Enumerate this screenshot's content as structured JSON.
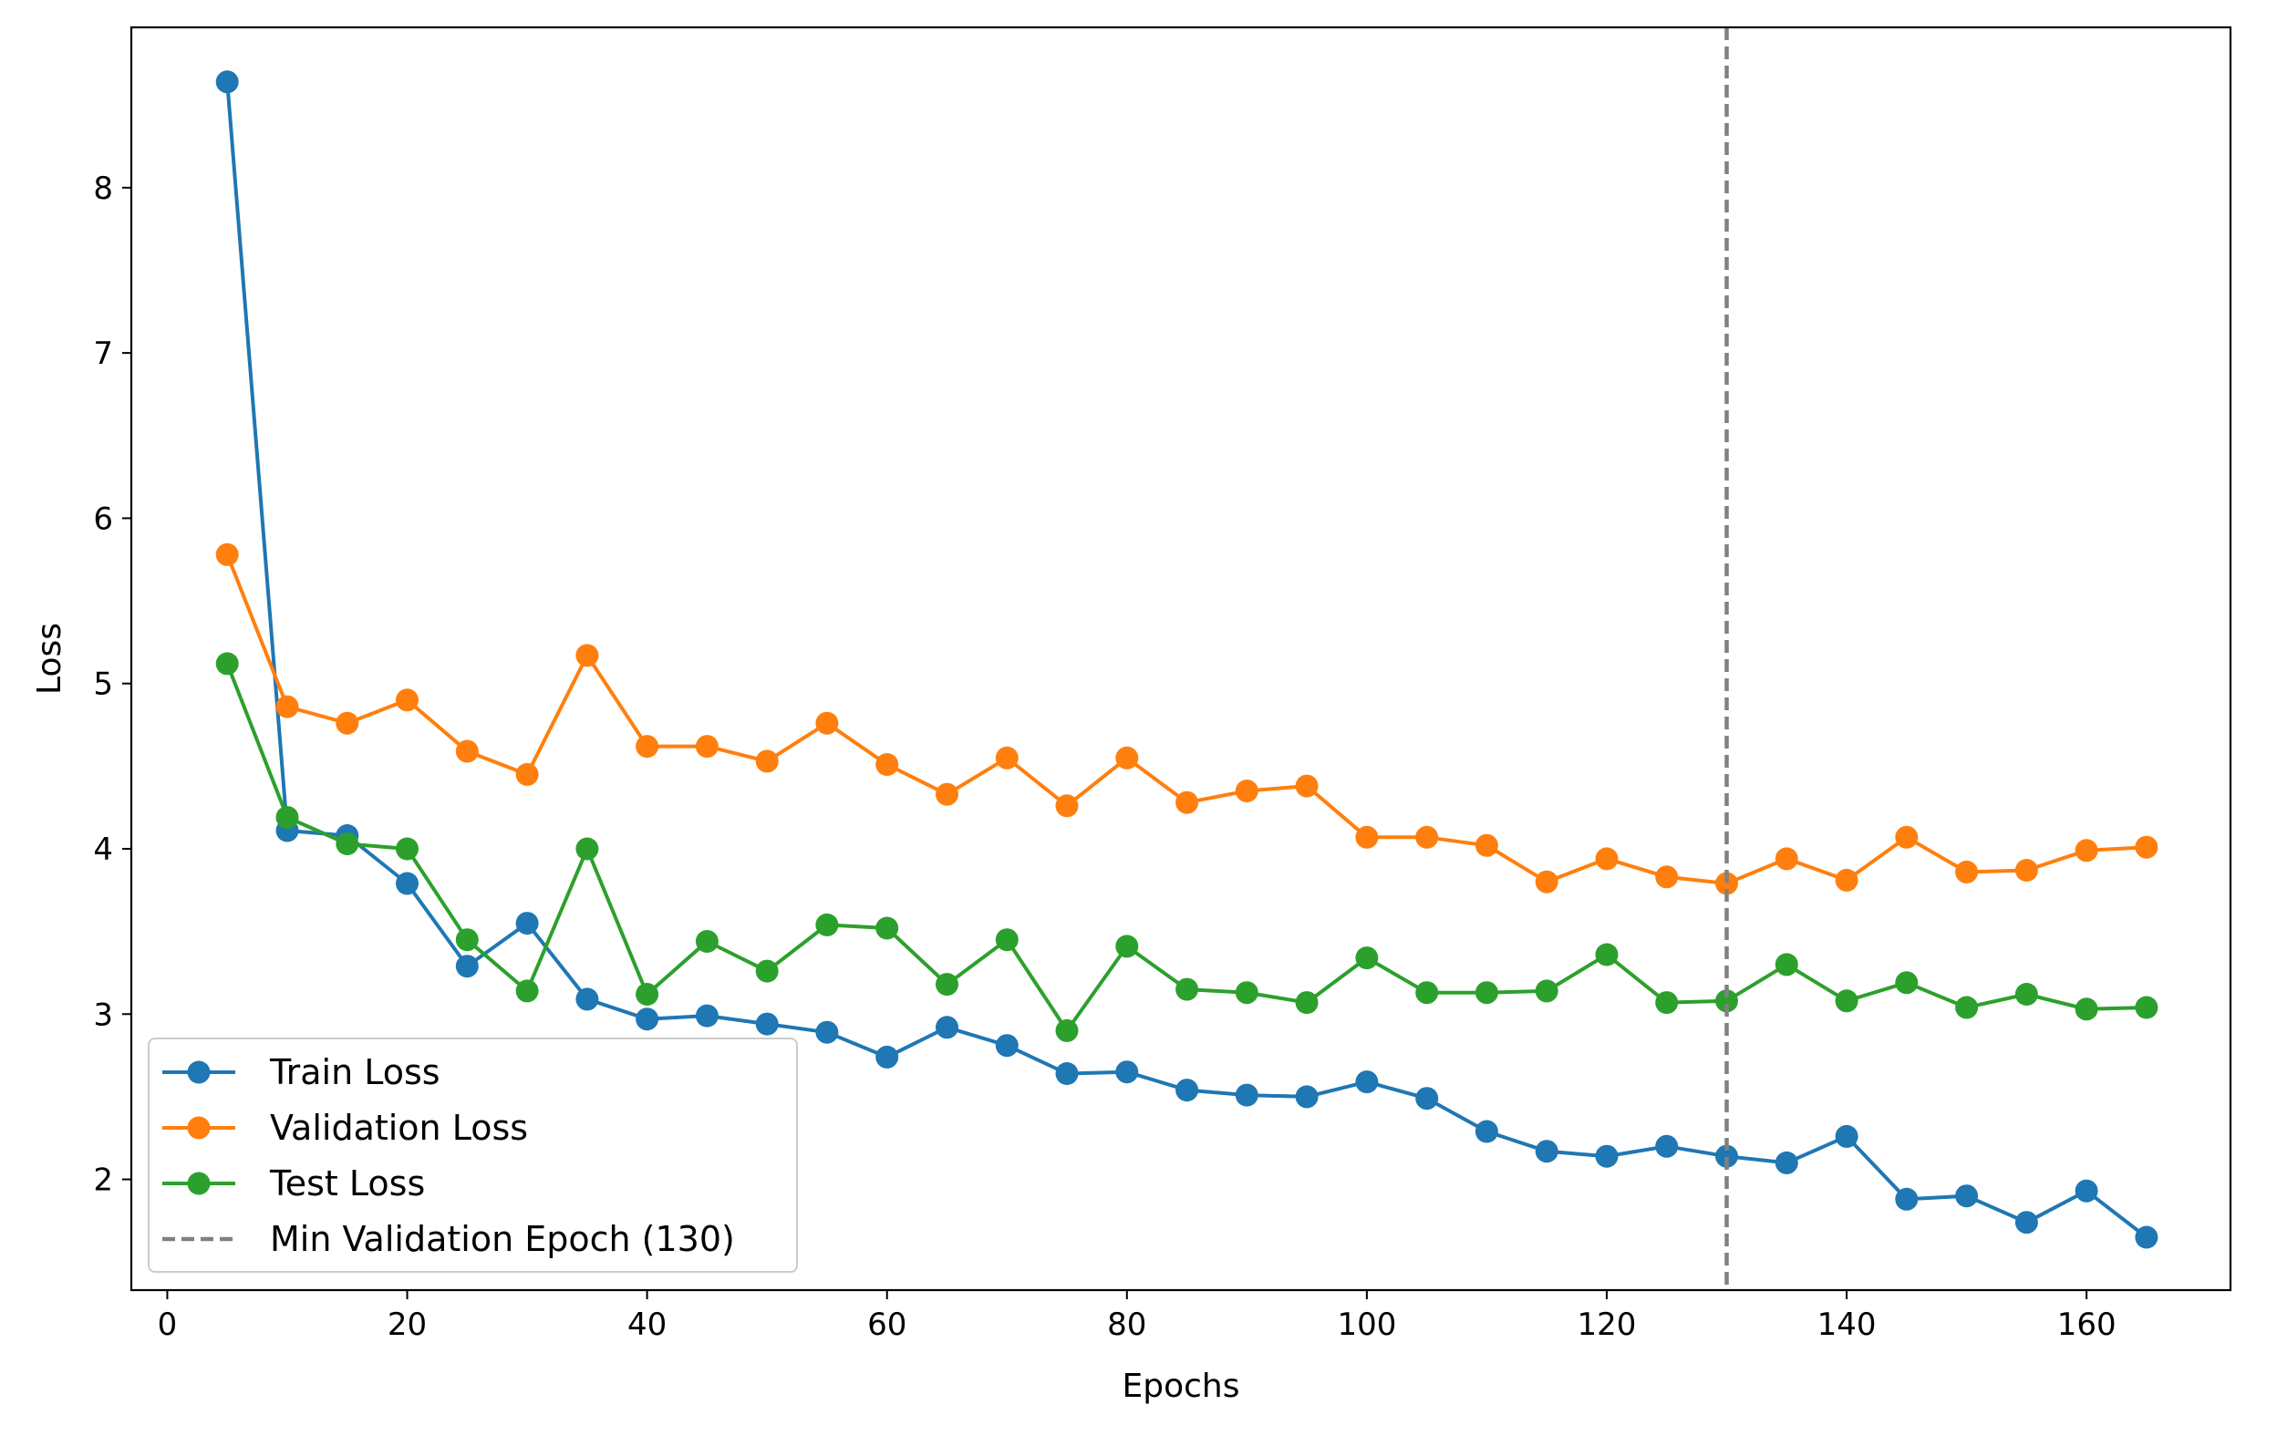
{
  "chart_data": {
    "type": "line",
    "title": "",
    "xlabel": "Epochs",
    "ylabel": "Loss",
    "xlim": [
      -3,
      172
    ],
    "ylim": [
      1.33,
      8.97
    ],
    "xticks": [
      0,
      20,
      40,
      60,
      80,
      100,
      120,
      140,
      160
    ],
    "yticks": [
      2,
      3,
      4,
      5,
      6,
      7,
      8
    ],
    "grid": false,
    "legend_position": "lower-left",
    "x": [
      5,
      10,
      15,
      20,
      25,
      30,
      35,
      40,
      45,
      50,
      55,
      60,
      65,
      70,
      75,
      80,
      85,
      90,
      95,
      100,
      105,
      110,
      115,
      120,
      125,
      130,
      135,
      140,
      145,
      150,
      155,
      160,
      165
    ],
    "series": [
      {
        "name": "Train Loss",
        "color": "#1f77b4",
        "values": [
          8.64,
          4.11,
          4.08,
          3.79,
          3.29,
          3.55,
          3.09,
          2.97,
          2.99,
          2.94,
          2.89,
          2.74,
          2.92,
          2.81,
          2.64,
          2.65,
          2.54,
          2.51,
          2.5,
          2.59,
          2.49,
          2.29,
          2.17,
          2.14,
          2.2,
          2.14,
          2.1,
          2.26,
          1.88,
          1.9,
          1.74,
          1.93,
          1.65
        ]
      },
      {
        "name": "Validation Loss",
        "color": "#ff7f0e",
        "values": [
          5.78,
          4.86,
          4.76,
          4.9,
          4.59,
          4.45,
          5.17,
          4.62,
          4.62,
          4.53,
          4.76,
          4.51,
          4.33,
          4.55,
          4.26,
          4.55,
          4.28,
          4.35,
          4.38,
          4.07,
          4.07,
          4.02,
          3.8,
          3.94,
          3.83,
          3.79,
          3.94,
          3.81,
          4.07,
          3.86,
          3.87,
          3.99,
          4.01
        ]
      },
      {
        "name": "Test Loss",
        "color": "#2ca02c",
        "values": [
          5.12,
          4.19,
          4.03,
          4.0,
          3.45,
          3.14,
          4.0,
          3.12,
          3.44,
          3.26,
          3.54,
          3.52,
          3.18,
          3.45,
          2.9,
          3.41,
          3.15,
          3.13,
          3.07,
          3.34,
          3.13,
          3.13,
          3.14,
          3.36,
          3.07,
          3.08,
          3.3,
          3.08,
          3.19,
          3.04,
          3.12,
          3.03,
          3.04
        ]
      }
    ],
    "vline": {
      "name": "Min Validation Epoch (130)",
      "x": 130,
      "color": "#808080",
      "style": "dashed"
    }
  }
}
